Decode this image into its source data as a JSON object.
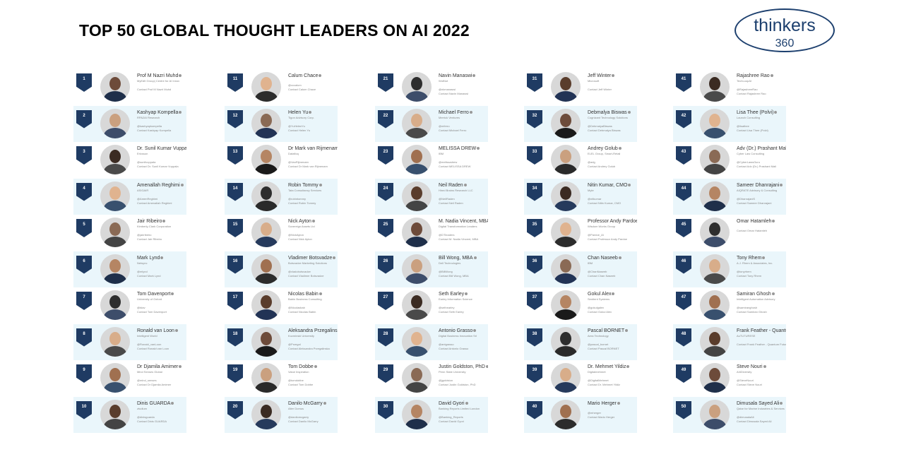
{
  "title": "TOP 50 GLOBAL THOUGHT LEADERS ON AI 2022",
  "logo": {
    "line1": "thinkers",
    "line2": "360"
  },
  "columns": [
    [
      {
        "rank": "1",
        "name": "Prof M Nazri Muhd",
        "org": "MyEdIt Group| Centre for AI Innov",
        "handle": "",
        "contact": "Contact Prof M Nazri Muhd"
      },
      {
        "rank": "2",
        "name": "Kashyap Kompella",
        "org": "RPA2AI Research",
        "handle": "@kashyapkompella",
        "contact": "Contact Kashyap Kompella"
      },
      {
        "rank": "3",
        "name": "Dr. Sunil Kumar Vuppa",
        "org": "Ericsson",
        "handle": "@sunilvuppala",
        "contact": "Contact Dr. Sunil Kumar Vuppala"
      },
      {
        "rank": "4",
        "name": "Amenallah Reghimi",
        "org": "ASIGAIR",
        "handle": "@AmenReghimi",
        "contact": "Contact Amenallah Reghimi"
      },
      {
        "rank": "5",
        "name": "Jair Ribeiro",
        "org": "Kimberly-Clark Corporation",
        "handle": "@jairribeiro",
        "contact": "Contact Jair Ribeiro"
      },
      {
        "rank": "6",
        "name": "Mark Lynd",
        "org": "Netsync",
        "handle": "@mlynd",
        "contact": "Contact Mark Lynd"
      },
      {
        "rank": "7",
        "name": "Tom Davenport",
        "org": "University of Oxford",
        "handle": "@tdav",
        "contact": "Contact Tom Davenport"
      },
      {
        "rank": "8",
        "name": "Ronald van Loon",
        "org": "Intelligent World",
        "handle": "@Ronald_vanLoon",
        "contact": "Contact Ronald van Loon"
      },
      {
        "rank": "9",
        "name": "Dr Djamila Amimer",
        "org": "Mind Senses Global",
        "handle": "@mind_senses",
        "contact": "Contact Dr Djamila Amimer"
      },
      {
        "rank": "10",
        "name": "Dinis GUARDA",
        "org": "ztudium",
        "handle": "@dinisguarda",
        "contact": "Contact Dinis GUARDA"
      }
    ],
    [
      {
        "rank": "11",
        "name": "Calum Chace",
        "org": "",
        "handle": "@cccalum",
        "contact": "Contact Calum Chace"
      },
      {
        "rank": "12",
        "name": "Helen Yu",
        "org": "Tigon Advisory Corp.",
        "handle": "@YuHelenYu",
        "contact": "Contact Helen Yu"
      },
      {
        "rank": "13",
        "name": "Dr Mark van Rijmenam",
        "org": "Datafloq",
        "handle": "@VanRijmenam",
        "contact": "Contact Dr Mark van Rijmenam"
      },
      {
        "rank": "14",
        "name": "Robin Tommy",
        "org": "Tata Consultancy Services",
        "handle": "@robintommy",
        "contact": "Contact Robin Tommy"
      },
      {
        "rank": "15",
        "name": "Nick Ayton",
        "org": "Sovereign Assets Ltd",
        "handle": "@NickAyton",
        "contact": "Contact Nick Ayton"
      },
      {
        "rank": "16",
        "name": "Vladimer Botsvadze",
        "org": "Botsvadze Marketing Solutions",
        "handle": "@vladobotsvadze",
        "contact": "Contact Vladimer Botsvadze"
      },
      {
        "rank": "17",
        "name": "Nicolas Babin",
        "org": "Babin Business Consulting",
        "handle": "@Nicolasbab",
        "contact": "Contact Nicolas Babin"
      },
      {
        "rank": "18",
        "name": "Aleksandra Przegalinska",
        "org": "Kozminski University",
        "handle": "@Przegal",
        "contact": "Contact Aleksandra Przegalinska"
      },
      {
        "rank": "19",
        "name": "Tom Dobbe",
        "org": "Value Inspiration",
        "handle": "@tomdobbe",
        "contact": "Contact Tom Dobbe"
      },
      {
        "rank": "20",
        "name": "Danilo McGarry",
        "org": "Alter Domus",
        "handle": "@danilomcgarry",
        "contact": "Contact Danilo McGarry"
      }
    ],
    [
      {
        "rank": "21",
        "name": "Navin Manaswi",
        "org": "WotNot",
        "handle": "@nkmanaswi",
        "contact": "Contact Navin Manaswi"
      },
      {
        "rank": "22",
        "name": "Michael Ferro",
        "org": "Merrick Ventures",
        "handle": "@mferro",
        "contact": "Contact Michael Ferro"
      },
      {
        "rank": "23",
        "name": "MELISSA DREW",
        "org": "IBM",
        "handle": "@melissadrew",
        "contact": "Contact MELISSA DREW"
      },
      {
        "rank": "24",
        "name": "Neil Raden",
        "org": "Hired Brains Research LLC",
        "handle": "@NeilRaden",
        "contact": "Contact Neil Raden"
      },
      {
        "rank": "25",
        "name": "M. Nadia Vincent, MBA",
        "org": "Digital Transformation Leaders",
        "handle": "@DTleaders",
        "contact": "Contact M. Nadia Vincent, MBA"
      },
      {
        "rank": "26",
        "name": "Bill Wong, MBA",
        "org": "Dell Technologies",
        "handle": "@BillWong",
        "contact": "Contact Bill Wong, MBA"
      },
      {
        "rank": "27",
        "name": "Seth Earley",
        "org": "Earley Information Science",
        "handle": "@sethearley",
        "contact": "Contact Seth Earley"
      },
      {
        "rank": "28",
        "name": "Antonio Grasso",
        "org": "Digital Business Innovation Srl",
        "handle": "@antgrasso",
        "contact": "Contact Antonio Grasso"
      },
      {
        "rank": "29",
        "name": "Justin Goldston, PhD",
        "org": "Penn State University",
        "handle": "@jgoldston",
        "contact": "Contact Justin Goldston, PhD"
      },
      {
        "rank": "30",
        "name": "David Gyori",
        "org": "Banking Reports Limited London",
        "handle": "@Banking_Reports",
        "contact": "Contact David Gyori"
      }
    ],
    [
      {
        "rank": "31",
        "name": "Jeff Winter",
        "org": "Microsoft",
        "handle": "",
        "contact": "Contact Jeff Winter"
      },
      {
        "rank": "32",
        "name": "Debmalya Biswas",
        "org": "Cognizant Technology Solutions",
        "handle": "@DebmalyaBiswas",
        "contact": "Contact Debmalya Biswas"
      },
      {
        "rank": "33",
        "name": "Andrey Golub",
        "org": "ELEL Group, Smart-Retail",
        "handle": "@adg",
        "contact": "Contact Andrey Golub"
      },
      {
        "rank": "34",
        "name": "Nitin Kumar, CMO",
        "org": "Myte",
        "handle": "@nitkumar",
        "contact": "Contact Nitin Kumar, CMO"
      },
      {
        "rank": "35",
        "name": "Professor Andy Pardoe",
        "org": "Wisdom Works Group",
        "handle": "@Pardoe_AI",
        "contact": "Contact Professor Andy Pardoe"
      },
      {
        "rank": "36",
        "name": "Chan Naseeb",
        "org": "IBM",
        "handle": "@ChanNaseeb",
        "contact": "Contact Chan Naseeb"
      },
      {
        "rank": "37",
        "name": "Gokul Alex",
        "org": "Sentient Systems",
        "handle": "@gokulgalex",
        "contact": "Contact Gokul Alex"
      },
      {
        "rank": "38",
        "name": "Pascal BORNET",
        "org": "Aera Technology",
        "handle": "@pascal_bornet",
        "contact": "Contact Pascal BORNET"
      },
      {
        "rank": "39",
        "name": "Dr. Mehmet Yildiz",
        "org": "Digitalmehmet",
        "handle": "@DigitalMehmet",
        "contact": "Contact Dr. Mehmet Yildiz"
      },
      {
        "rank": "40",
        "name": "Mario Herger",
        "org": "",
        "handle": "@mherger",
        "contact": "Contact Mario Herger"
      }
    ],
    [
      {
        "rank": "41",
        "name": "Rajashree Rao",
        "org": "TechLoopAI",
        "handle": "@RajashreeRao",
        "contact": "Contact Rajashree Rao"
      },
      {
        "rank": "42",
        "name": "Lisa Thee (Polvi)",
        "org": "Launch Consulting",
        "handle": "@lisathee",
        "contact": "Contact Lisa Thee (Polvi)"
      },
      {
        "rank": "43",
        "name": "Adv (Dr.) Prashant Mali",
        "org": "Cyber Law Consulting",
        "handle": "@CyberLawsGuru",
        "contact": "Contact Adv (Dr.) Prashant Mali"
      },
      {
        "rank": "44",
        "name": "Sameer Dhanrajani",
        "org": "AIQRATE Advisory & Consulting",
        "handle": "@DhanrajaniS",
        "contact": "Contact Sameer Dhanrajani"
      },
      {
        "rank": "45",
        "name": "Omar Hatamleh",
        "org": "",
        "handle": "",
        "contact": "Contact Omar Hatamleh"
      },
      {
        "rank": "46",
        "name": "Tony Rhem",
        "org": "A.J. Rhem & Associates, Inc.",
        "handle": "@tonyrhem",
        "contact": "Contact Tony Rhem"
      },
      {
        "rank": "47",
        "name": "Samiran Ghosh",
        "org": "Intelligent Automation Advisory",
        "handle": "@samiranghosh",
        "contact": "Contact Samiran Ghosh"
      },
      {
        "rank": "48",
        "name": "Frank Feather - Quantum Futurist",
        "org": "AuTUTURESE",
        "handle": "",
        "contact": "Contact Frank Feather - Quantum Futurist"
      },
      {
        "rank": "49",
        "name": "Steve Nouri",
        "org": "AI4Diversity",
        "handle": "@SteveNouri",
        "contact": "Contact Steve Nouri"
      },
      {
        "rank": "50",
        "name": "Dimusala Sayed Ali",
        "org": "Qatar for Marine Industries & Services",
        "handle": "@dimusalaAli",
        "contact": "Contact Dimusala Sayed Ali"
      }
    ]
  ]
}
